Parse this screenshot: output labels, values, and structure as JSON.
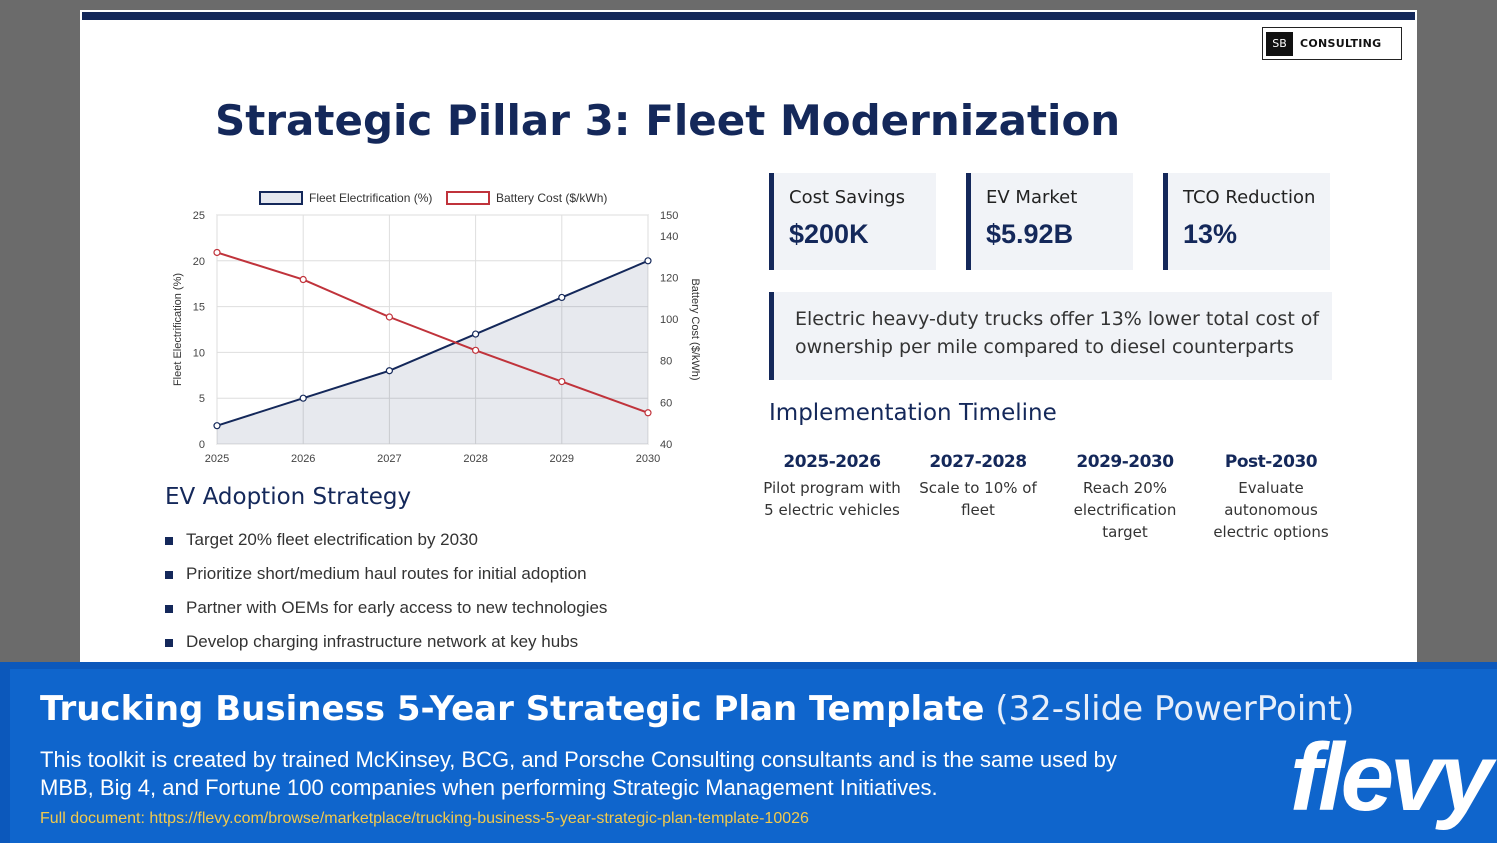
{
  "logo": {
    "box_text": "SB",
    "text": "CONSULTING"
  },
  "slide_title": "Strategic Pillar 3: Fleet Modernization",
  "kpis": [
    {
      "label": "Cost Savings",
      "value": "$200K"
    },
    {
      "label": "EV Market",
      "value": "$5.92B"
    },
    {
      "label": "TCO Reduction",
      "value": "13%"
    }
  ],
  "callout": "Electric heavy-duty trucks offer 13% lower total cost of ownership per mile compared to diesel counterparts",
  "timeline": {
    "title": "Implementation Timeline",
    "items": [
      {
        "period": "2025-2026",
        "desc": "Pilot program with 5 electric vehicles"
      },
      {
        "period": "2027-2028",
        "desc": "Scale to 10% of fleet"
      },
      {
        "period": "2029-2030",
        "desc": "Reach 20% electrification target"
      },
      {
        "period": "Post-2030",
        "desc": "Evaluate autonomous electric options"
      }
    ]
  },
  "strategy": {
    "title": "EV Adoption Strategy",
    "items": [
      "Target 20% fleet electrification by 2030",
      "Prioritize short/medium haul routes for initial adoption",
      "Partner with OEMs for early access to new technologies",
      "Develop charging infrastructure network at key hubs"
    ]
  },
  "chart_data": {
    "type": "line",
    "x": [
      "2025",
      "2026",
      "2027",
      "2028",
      "2029",
      "2030"
    ],
    "series": [
      {
        "name": "Fleet Electrification (%)",
        "axis": "left",
        "values": [
          2,
          5,
          8,
          12,
          16,
          20
        ],
        "color": "#14285a",
        "fill": true
      },
      {
        "name": "Battery Cost ($/kWh)",
        "axis": "right",
        "values": [
          132,
          119,
          101,
          85,
          70,
          55
        ],
        "color": "#c0333b",
        "fill": false
      }
    ],
    "ylabel": "Fleet Electrification (%)",
    "y2label": "Battery Cost ($/kWh)",
    "ylim": [
      0,
      25
    ],
    "y2lim": [
      40,
      150
    ],
    "yticks": [
      0,
      5,
      10,
      15,
      20,
      25
    ],
    "y2ticks": [
      40,
      60,
      80,
      100,
      120,
      140,
      150
    ],
    "grid": true,
    "legend": "top"
  },
  "banner": {
    "title": "Trucking Business 5-Year Strategic Plan Template",
    "subtitle": " (32-slide PowerPoint)",
    "desc": "This toolkit is created by trained McKinsey, BCG, and Porsche Consulting consultants and is the same used by MBB, Big 4, and Fortune 100 companies when performing Strategic Management Initiatives.",
    "link": "Full document: https://flevy.com/browse/marketplace/trucking-business-5-year-strategic-plan-template-10026",
    "brand": "flevy"
  }
}
